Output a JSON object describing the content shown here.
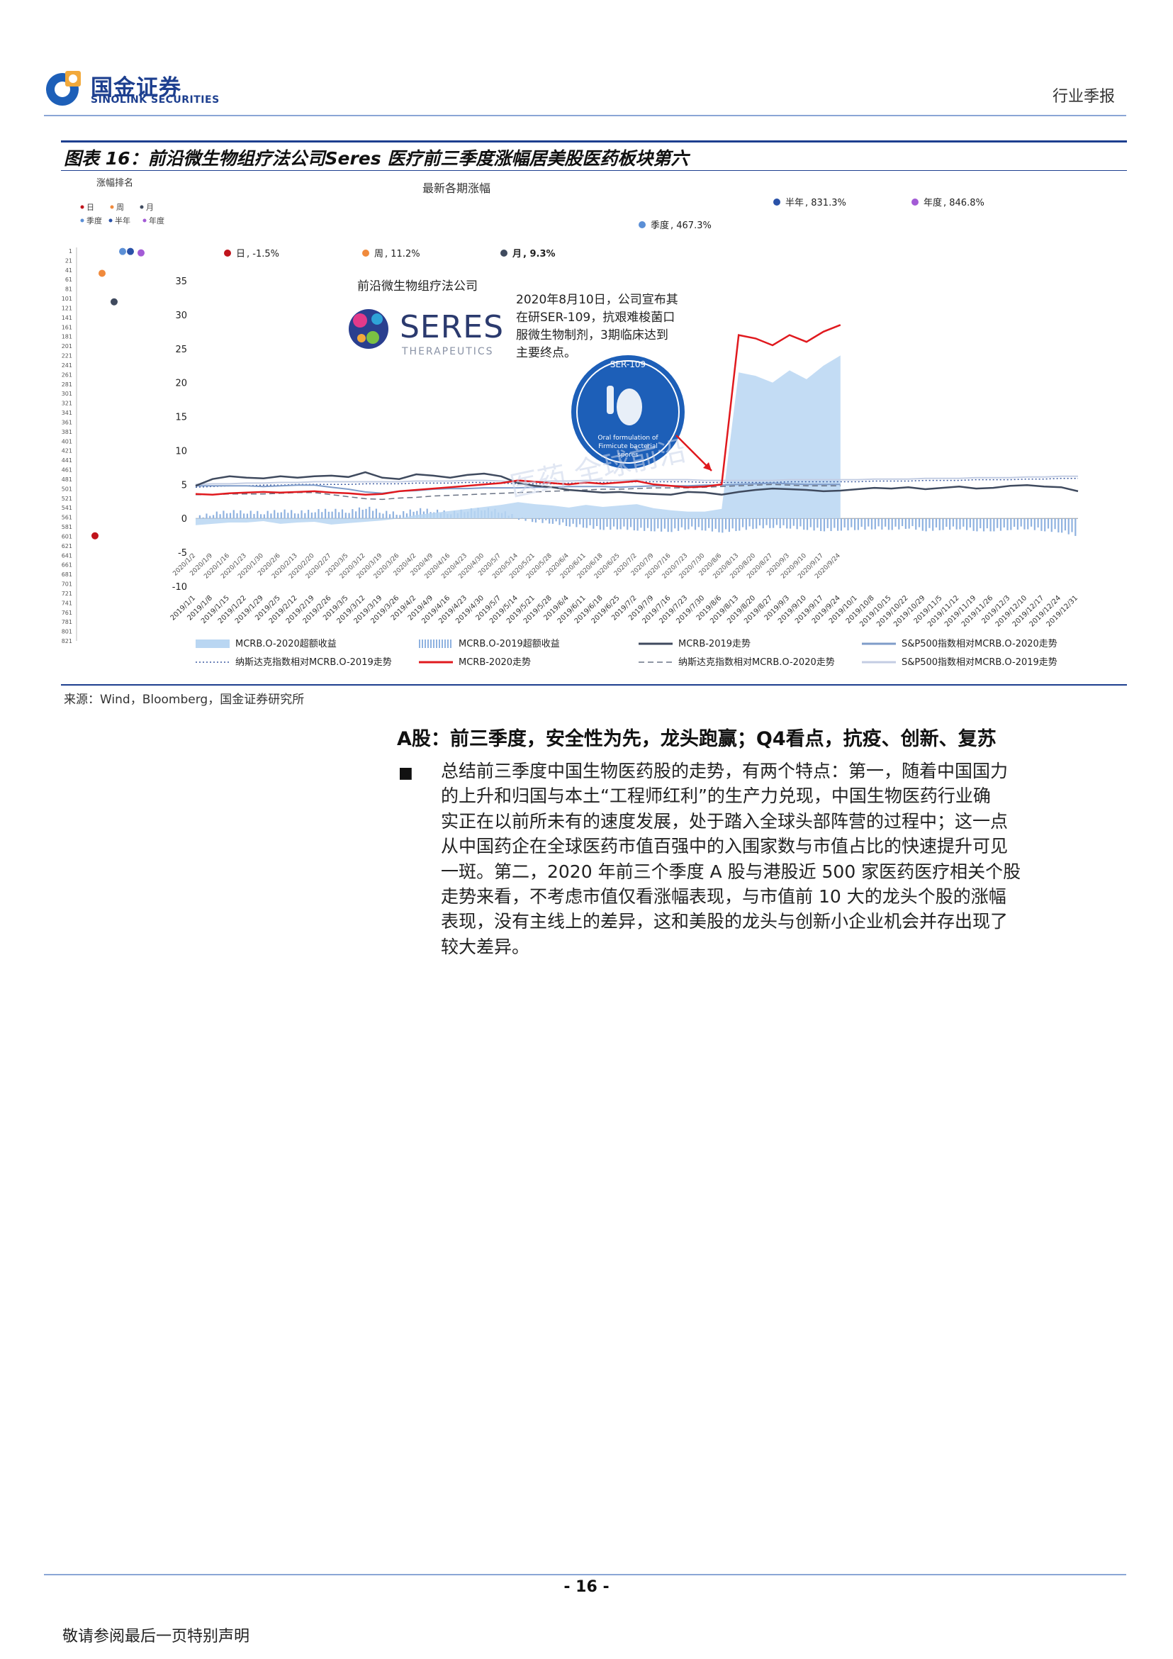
{
  "header": {
    "logo_cn": "国金证券",
    "logo_en": "SINOLINK SECURITIES",
    "report_type": "行业季报"
  },
  "figure": {
    "title": "图表 16：前沿微生物组疗法公司Seres 医疗前三季度涨幅居美股医药板块第六",
    "source": "来源：Wind，Bloomberg，国金证券研究所",
    "watermark": "医药 全球前沿",
    "panel": {
      "ranking_title": "涨幅排名",
      "latest_title": "最新各期涨幅",
      "period_legend": [
        "日",
        "周",
        "月",
        "季度",
        "半年",
        "年度"
      ],
      "rank_ticks": [
        "1",
        "21",
        "41",
        "61",
        "81",
        "101",
        "121",
        "141",
        "161",
        "181",
        "201",
        "221",
        "241",
        "261",
        "281",
        "301",
        "321",
        "341",
        "361",
        "381",
        "401",
        "421",
        "441",
        "461",
        "481",
        "501",
        "521",
        "541",
        "561",
        "581",
        "601",
        "621",
        "641",
        "661",
        "681",
        "701",
        "721",
        "741",
        "761",
        "781",
        "801",
        "821"
      ],
      "period_returns": [
        {
          "label": "日",
          "value": "-1.5%",
          "color": "#c0141c"
        },
        {
          "label": "周",
          "value": "11.2%",
          "color": "#f08a3c"
        },
        {
          "label": "月",
          "value": "9.3%",
          "color": "#3f4a5e"
        },
        {
          "label": "季度",
          "value": "467.3%",
          "color": "#5b8fd6"
        },
        {
          "label": "半年",
          "value": "831.3%",
          "color": "#2a52a8"
        },
        {
          "label": "年度",
          "value": "846.8%",
          "color": "#a35bd6"
        }
      ]
    },
    "company": {
      "cn_name": "前沿微生物组疗法公司",
      "logo_text": "SERES",
      "logo_sub": "THERAPEUTICS",
      "annotation": [
        "2020年8月10日，公司宣布其",
        "在研SER-109，抗艰难梭菌口",
        "服微生物制剂，3期临床达到",
        "主要终点。"
      ],
      "badge_title": "SER-109",
      "badge_caption": [
        "Oral formulation of",
        "Firmicute bacterial",
        "spores"
      ]
    },
    "legend": [
      {
        "label": "MCRB.O-2020超额收益",
        "color": "#b9d6f2",
        "style": "area"
      },
      {
        "label": "MCRB.O-2019超额收益",
        "color": "#8fb2e0",
        "style": "bars"
      },
      {
        "label": "MCRB-2019走势",
        "color": "#3f4a5e",
        "style": "line"
      },
      {
        "label": "S&P500指数相对MCRB.O-2020走势",
        "color": "#7f9cc9",
        "style": "line"
      },
      {
        "label": "纳斯达克指数相对MCRB.O-2019走势",
        "color": "#3b5aa0",
        "style": "dotted"
      },
      {
        "label": "MCRB-2020走势",
        "color": "#e0191e",
        "style": "line"
      },
      {
        "label": "纳斯达克指数相对MCRB.O-2020走势",
        "color": "#6a7385",
        "style": "dashed"
      },
      {
        "label": "S&P500指数相对MCRB.O-2019走势",
        "color": "#c3cde3",
        "style": "line"
      }
    ]
  },
  "chart_data": {
    "type": "line",
    "ylim": [
      -10,
      35
    ],
    "yticks": [
      -10,
      -5,
      0,
      5,
      10,
      15,
      20,
      25,
      30,
      35
    ],
    "x_2020": [
      "2020/1/2",
      "2020/1/9",
      "2020/1/16",
      "2020/1/23",
      "2020/1/30",
      "2020/2/6",
      "2020/2/13",
      "2020/2/20",
      "2020/2/27",
      "2020/3/5",
      "2020/3/12",
      "2020/3/19",
      "2020/3/26",
      "2020/4/2",
      "2020/4/9",
      "2020/4/16",
      "2020/4/23",
      "2020/4/30",
      "2020/5/7",
      "2020/5/14",
      "2020/5/21",
      "2020/5/28",
      "2020/6/4",
      "2020/6/11",
      "2020/6/18",
      "2020/6/25",
      "2020/7/2",
      "2020/7/9",
      "2020/7/16",
      "2020/7/23",
      "2020/7/30",
      "2020/8/6",
      "2020/8/13",
      "2020/8/20",
      "2020/8/27",
      "2020/9/3",
      "2020/9/10",
      "2020/9/17",
      "2020/9/24"
    ],
    "x_2019": [
      "2019/1/1",
      "2019/1/8",
      "2019/1/15",
      "2019/1/22",
      "2019/1/29",
      "2019/2/5",
      "2019/2/12",
      "2019/2/19",
      "2019/2/26",
      "2019/3/5",
      "2019/3/12",
      "2019/3/19",
      "2019/3/26",
      "2019/4/2",
      "2019/4/9",
      "2019/4/16",
      "2019/4/23",
      "2019/4/30",
      "2019/5/7",
      "2019/5/14",
      "2019/5/21",
      "2019/5/28",
      "2019/6/4",
      "2019/6/11",
      "2019/6/18",
      "2019/6/25",
      "2019/7/2",
      "2019/7/9",
      "2019/7/16",
      "2019/7/23",
      "2019/7/30",
      "2019/8/6",
      "2019/8/13",
      "2019/8/20",
      "2019/8/27",
      "2019/9/3",
      "2019/9/10",
      "2019/9/17",
      "2019/9/24",
      "2019/10/1",
      "2019/10/8",
      "2019/10/15",
      "2019/10/22",
      "2019/10/29",
      "2019/11/5",
      "2019/11/12",
      "2019/11/19",
      "2019/11/26",
      "2019/12/3",
      "2019/12/10",
      "2019/12/17",
      "2019/12/24",
      "2019/12/31"
    ],
    "series": [
      {
        "name": "MCRB-2020走势",
        "values": [
          3.6,
          3.5,
          3.7,
          3.8,
          3.9,
          3.8,
          3.9,
          4.0,
          3.8,
          3.7,
          3.5,
          3.6,
          4.0,
          4.2,
          4.4,
          4.6,
          4.8,
          5.0,
          5.2,
          5.6,
          5.4,
          5.2,
          5.0,
          5.3,
          5.1,
          5.3,
          5.5,
          5.0,
          4.8,
          4.6,
          4.7,
          5.0,
          27.0,
          26.5,
          25.5,
          27.0,
          26.0,
          27.5,
          28.5
        ]
      },
      {
        "name": "MCRB.O-2020超额收益",
        "values": [
          -1.0,
          -0.8,
          -0.6,
          -0.6,
          -0.4,
          -0.8,
          -0.6,
          -0.5,
          -0.9,
          -0.7,
          -0.5,
          -0.3,
          0.0,
          0.5,
          0.8,
          1.1,
          1.4,
          1.7,
          2.0,
          2.4,
          2.1,
          1.9,
          1.6,
          2.0,
          1.7,
          1.9,
          2.1,
          1.5,
          1.2,
          1.0,
          1.0,
          1.4,
          21.5,
          21.0,
          20.0,
          21.8,
          20.5,
          22.5,
          24.0
        ]
      },
      {
        "name": "MCRB-2019走势",
        "values": [
          4.8,
          5.8,
          6.2,
          6.0,
          5.9,
          6.2,
          6.0,
          6.2,
          6.3,
          6.1,
          6.8,
          6.0,
          5.8,
          6.5,
          6.3,
          6.0,
          6.4,
          6.6,
          6.2,
          5.2,
          4.8,
          4.6,
          4.2,
          4.0,
          3.8,
          3.9,
          3.7,
          3.6,
          3.5,
          3.9,
          3.8,
          3.5,
          3.9,
          4.2,
          4.4,
          4.3,
          4.2,
          4.0,
          4.1,
          4.3,
          4.5,
          4.4,
          4.6,
          4.3,
          4.5,
          4.7,
          4.4,
          4.5,
          4.8,
          4.9,
          4.7,
          4.6,
          4.0
        ]
      },
      {
        "name": "MCRB.O-2019超额收益",
        "values": [
          0.1,
          0.7,
          1.0,
          0.9,
          0.8,
          1.1,
          0.9,
          1.1,
          1.2,
          1.0,
          1.6,
          0.9,
          0.7,
          1.3,
          1.1,
          0.8,
          1.2,
          1.4,
          1.0,
          0.0,
          -0.4,
          -0.6,
          -1.0,
          -1.2,
          -1.5,
          -1.4,
          -1.6,
          -1.7,
          -1.8,
          -1.4,
          -1.6,
          -1.9,
          -1.6,
          -1.3,
          -1.2,
          -1.3,
          -1.5,
          -1.7,
          -1.6,
          -1.5,
          -1.4,
          -1.5,
          -1.3,
          -1.7,
          -1.5,
          -1.4,
          -1.7,
          -1.7,
          -1.5,
          -1.4,
          -1.7,
          -1.9,
          -2.5
        ]
      },
      {
        "name": "S&P500指数相对MCRB.O-2020走势",
        "values": [
          4.8,
          4.8,
          4.8,
          4.8,
          4.7,
          4.8,
          4.9,
          4.9,
          4.6,
          4.3,
          3.9,
          3.7,
          4.0,
          4.1,
          4.3,
          4.4,
          4.4,
          4.5,
          4.5,
          4.5,
          4.6,
          4.6,
          4.7,
          4.7,
          4.7,
          4.6,
          4.7,
          4.8,
          4.8,
          4.8,
          4.9,
          4.9,
          5.0,
          5.1,
          5.2,
          5.1,
          5.0,
          5.0,
          5.0
        ]
      },
      {
        "name": "纳斯达克指数相对MCRB.O-2020走势",
        "values": [
          3.5,
          3.5,
          3.6,
          3.6,
          3.6,
          3.7,
          3.8,
          3.8,
          3.5,
          3.2,
          2.9,
          2.8,
          3.0,
          3.1,
          3.3,
          3.4,
          3.5,
          3.6,
          3.7,
          3.8,
          3.9,
          4.0,
          4.1,
          4.2,
          4.3,
          4.3,
          4.4,
          4.5,
          4.5,
          4.5,
          4.6,
          4.7,
          4.8,
          4.9,
          5.0,
          4.9,
          4.8,
          4.8,
          4.8
        ]
      },
      {
        "name": "纳斯达克指数相对MCRB.O-2019走势",
        "values": [
          4.6,
          4.7,
          4.8,
          4.8,
          4.9,
          4.9,
          5.0,
          5.0,
          5.0,
          5.0,
          5.1,
          5.1,
          5.1,
          5.2,
          5.2,
          5.2,
          5.3,
          5.3,
          5.2,
          5.1,
          5.1,
          5.1,
          5.2,
          5.2,
          5.3,
          5.3,
          5.4,
          5.4,
          5.4,
          5.4,
          5.3,
          5.3,
          5.3,
          5.3,
          5.3,
          5.4,
          5.4,
          5.4,
          5.4,
          5.4,
          5.5,
          5.5,
          5.5,
          5.6,
          5.6,
          5.6,
          5.7,
          5.7,
          5.7,
          5.8,
          5.8,
          5.9,
          5.9
        ]
      },
      {
        "name": "S&P500指数相对MCRB.O-2019走势",
        "values": [
          5.0,
          5.1,
          5.1,
          5.2,
          5.2,
          5.3,
          5.3,
          5.4,
          5.4,
          5.4,
          5.4,
          5.4,
          5.4,
          5.5,
          5.5,
          5.5,
          5.6,
          5.6,
          5.5,
          5.4,
          5.4,
          5.5,
          5.5,
          5.6,
          5.6,
          5.6,
          5.7,
          5.7,
          5.7,
          5.7,
          5.6,
          5.6,
          5.6,
          5.6,
          5.6,
          5.7,
          5.7,
          5.7,
          5.7,
          5.7,
          5.8,
          5.8,
          5.8,
          5.9,
          5.9,
          5.9,
          6.0,
          6.0,
          6.0,
          6.1,
          6.1,
          6.2,
          6.2
        ]
      }
    ]
  },
  "body": {
    "section_heading": "A股：前三季度，安全性为先，龙头跑赢；Q4看点，抗疫、创新、复苏",
    "bullet": "■",
    "paragraph_lines": [
      "总结前三季度中国生物医药股的走势，有两个特点：第一，随着中国国力",
      "的上升和归国与本土“工程师红利”的生产力兑现，中国生物医药行业确",
      "实正在以前所未有的速度发展，处于踏入全球头部阵营的过程中；这一点",
      "从中国药企在全球医药市值百强中的入围家数与市值占比的快速提升可见",
      "一斑。第二，2020 年前三个季度 A 股与港股近 500 家医药医疗相关个股",
      "走势来看，不考虑市值仅看涨幅表现，与市值前 10 大的龙头个股的涨幅",
      "表现，没有主线上的差异，这和美股的龙头与创新小企业机会并存出现了",
      "较大差异。"
    ]
  },
  "footer": {
    "page_number": "- 16 -",
    "disclaimer": "敬请参阅最后一页特别声明"
  }
}
